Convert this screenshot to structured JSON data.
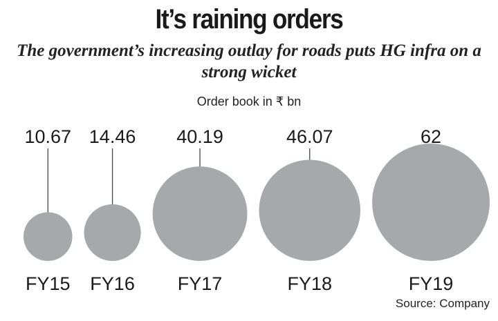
{
  "header": {
    "title": "It’s raining orders",
    "subtitle": "The government’s increasing outlay for roads puts HG infra on a strong wicket",
    "unit": "Order book in ₹ bn"
  },
  "footer": {
    "source": "Source: Company"
  },
  "colors": {
    "bubble": "#a7a8ab",
    "leader": "#444444"
  },
  "chart_data": {
    "type": "bubble",
    "title": "It’s raining orders",
    "subtitle": "The government’s increasing outlay for roads puts HG infra on a strong wicket",
    "ylabel": "Order book in ₹ bn",
    "categories": [
      "FY15",
      "FY16",
      "FY17",
      "FY18",
      "FY19"
    ],
    "values": [
      10.67,
      14.46,
      40.19,
      46.07,
      62
    ],
    "value_labels": [
      "10.67",
      "14.46",
      "40.19",
      "46.07",
      "62"
    ],
    "grid": false,
    "legend": "none"
  }
}
